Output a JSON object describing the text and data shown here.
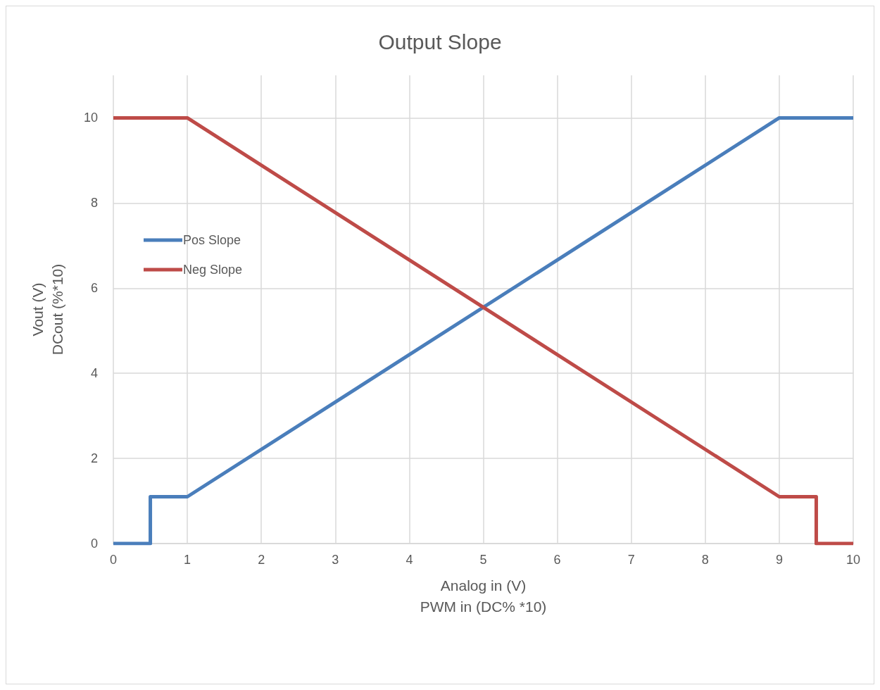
{
  "chart_data": {
    "type": "line",
    "title": "Output Slope",
    "xlabel": "Analog in (V)\nPWM in (DC% *10)",
    "ylabel": "Vout (V)\nDCout (%*10)",
    "series": [
      {
        "name": "Pos Slope",
        "color": "#4a7ebb",
        "x": [
          0,
          0.5,
          0.5,
          1,
          9,
          10
        ],
        "values": [
          0,
          0,
          1.1,
          1.1,
          10,
          10
        ]
      },
      {
        "name": "Neg Slope",
        "color": "#be4b48",
        "x": [
          0,
          1,
          9,
          9.5,
          9.5,
          10
        ],
        "values": [
          10,
          10,
          1.1,
          1.1,
          0,
          0
        ]
      }
    ],
    "xlim": [
      0,
      10
    ],
    "xticks": [
      0,
      1,
      2,
      3,
      4,
      5,
      6,
      7,
      8,
      9,
      10
    ],
    "ylim": [
      0,
      11
    ],
    "yticks": [
      0,
      2,
      4,
      6,
      8,
      10
    ],
    "grid": true,
    "legend": "top left",
    "marker": "none",
    "line_style": "solid"
  }
}
